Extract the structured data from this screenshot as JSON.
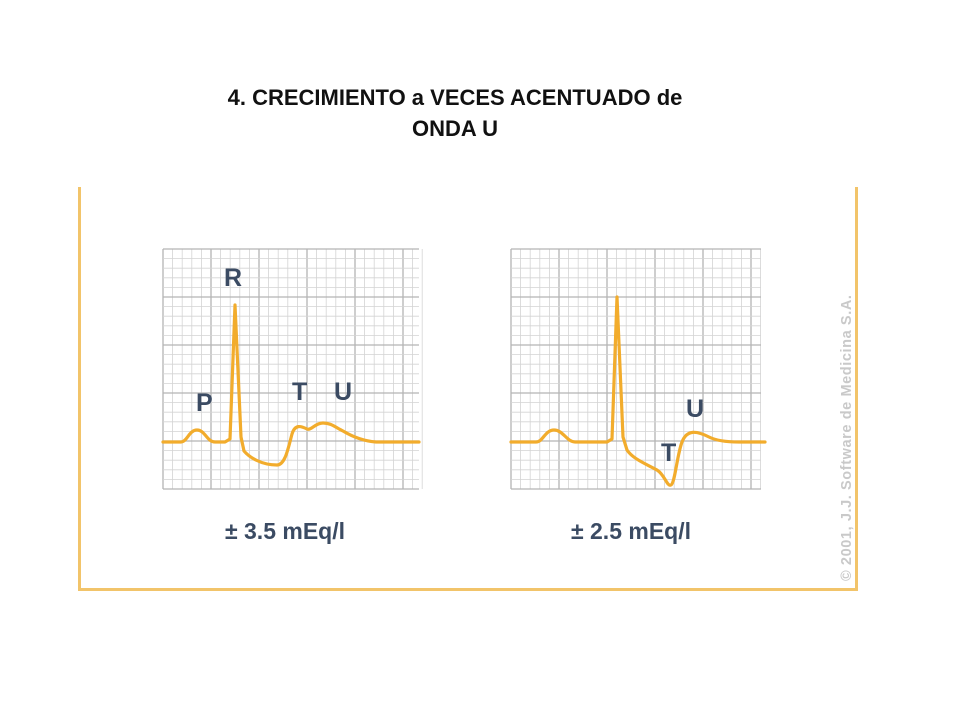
{
  "slide": {
    "title_line1": "4. CRECIMIENTO a VECES ACENTUADO de",
    "title_line2": "ONDA U"
  },
  "panels": [
    {
      "id": "left",
      "wave_labels": {
        "p": "P",
        "r": "R",
        "t": "T",
        "u": "U"
      },
      "concentration": "± 3.5 mEq/l"
    },
    {
      "id": "right",
      "wave_labels": {
        "t": "T",
        "u": "U"
      },
      "concentration": "± 2.5 mEq/l"
    }
  ],
  "copyright": "© 2001, J.J. Software de Medicina S.A.",
  "colors": {
    "trace": "#f2ac2c",
    "frame": "#f2c46a",
    "grid_minor": "#d4d4d4",
    "grid_major": "#b4b4b4",
    "label": "#3b4b63",
    "copyright": "#c9c9c9"
  }
}
